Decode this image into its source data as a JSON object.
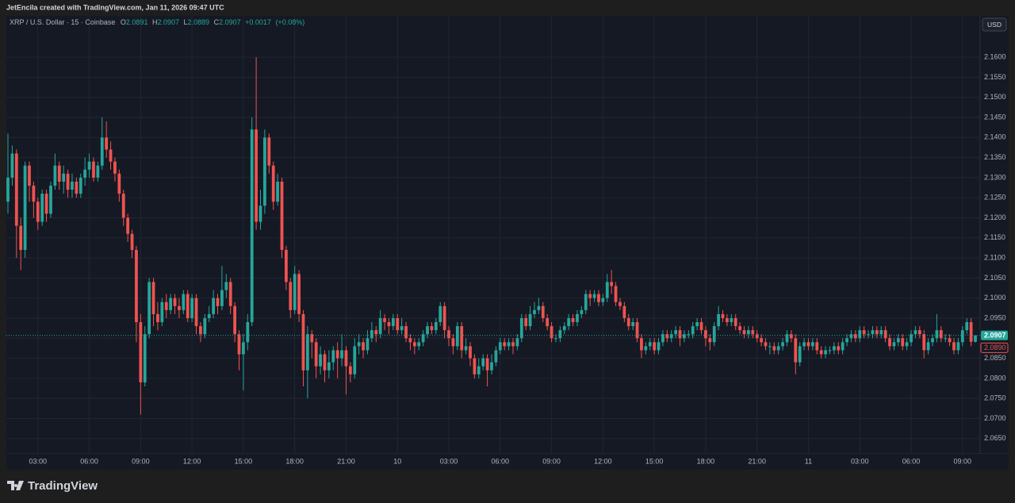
{
  "chart_data": {
    "type": "candlestick",
    "attribution": "JetEncila created with TradingView.com, Jan 11, 2026 09:47 UTC",
    "symbol": "XRP / U.S. Dollar · 15 · Coinbase",
    "ohlc_labels": [
      "O",
      "H",
      "L",
      "C"
    ],
    "change": {
      "value": 0.0017,
      "label": "+0.0017"
    },
    "change_pct": {
      "value": 0.08,
      "label": "(+0.08%)"
    },
    "currency": "USD",
    "brand": "TradingView",
    "up_color": "#26a69a",
    "down_color": "#ef5350",
    "grid": true,
    "secondary_price": {
      "value": 2.089,
      "label": "2.0890"
    },
    "ylim": [
      2.0612,
      2.1703
    ],
    "yticks": [
      {
        "value": 2.065,
        "label": "2.0650"
      },
      {
        "value": 2.07,
        "label": "2.0700"
      },
      {
        "value": 2.075,
        "label": "2.0750"
      },
      {
        "value": 2.08,
        "label": "2.0800"
      },
      {
        "value": 2.085,
        "label": "2.0850"
      },
      {
        "value": 2.09,
        "label": "2.0900"
      },
      {
        "value": 2.095,
        "label": "2.0950"
      },
      {
        "value": 2.1,
        "label": "2.1000"
      },
      {
        "value": 2.105,
        "label": "2.1050"
      },
      {
        "value": 2.11,
        "label": "2.1100"
      },
      {
        "value": 2.115,
        "label": "2.1150"
      },
      {
        "value": 2.12,
        "label": "2.1200"
      },
      {
        "value": 2.125,
        "label": "2.1250"
      },
      {
        "value": 2.13,
        "label": "2.1300"
      },
      {
        "value": 2.135,
        "label": "2.1350"
      },
      {
        "value": 2.14,
        "label": "2.1400"
      },
      {
        "value": 2.145,
        "label": "2.1450"
      },
      {
        "value": 2.15,
        "label": "2.1500"
      },
      {
        "value": 2.155,
        "label": "2.1550"
      },
      {
        "value": 2.16,
        "label": "2.1600"
      }
    ],
    "xlim": [
      0,
      226
    ],
    "xticks": [
      {
        "value": 7,
        "label": "03:00"
      },
      {
        "value": 19,
        "label": "06:00"
      },
      {
        "value": 31,
        "label": "09:00"
      },
      {
        "value": 43,
        "label": "12:00"
      },
      {
        "value": 55,
        "label": "15:00"
      },
      {
        "value": 67,
        "label": "18:00"
      },
      {
        "value": 79,
        "label": "21:00"
      },
      {
        "value": 91,
        "label": "10"
      },
      {
        "value": 103,
        "label": "03:00"
      },
      {
        "value": 115,
        "label": "06:00"
      },
      {
        "value": 127,
        "label": "09:00"
      },
      {
        "value": 139,
        "label": "12:00"
      },
      {
        "value": 151,
        "label": "15:00"
      },
      {
        "value": 163,
        "label": "18:00"
      },
      {
        "value": 175,
        "label": "21:00"
      },
      {
        "value": 187,
        "label": "11"
      },
      {
        "value": 199,
        "label": "03:00"
      },
      {
        "value": 211,
        "label": "06:00"
      },
      {
        "value": 223,
        "label": "09:00"
      }
    ],
    "open": [
      2.124,
      2.13,
      2.136,
      2.118,
      2.112,
      2.133,
      2.128,
      2.124,
      2.119,
      2.126,
      2.121,
      2.128,
      2.133,
      2.129,
      2.131,
      2.127,
      2.129,
      2.126,
      2.13,
      2.132,
      2.134,
      2.13,
      2.133,
      2.14,
      2.137,
      2.134,
      2.131,
      2.126,
      2.12,
      2.116,
      2.112,
      2.094,
      2.079,
      2.091,
      2.104,
      2.096,
      2.094,
      2.099,
      2.097,
      2.1,
      2.098,
      2.097,
      2.101,
      2.095,
      2.1,
      2.093,
      2.091,
      2.095,
      2.096,
      2.1,
      2.098,
      2.102,
      2.104,
      2.098,
      2.091,
      2.086,
      2.089,
      2.094,
      2.142,
      2.119,
      2.123,
      2.14,
      2.133,
      2.124,
      2.129,
      2.112,
      2.104,
      2.097,
      2.106,
      2.096,
      2.082,
      2.091,
      2.089,
      2.083,
      2.086,
      2.082,
      2.084,
      2.087,
      2.085,
      2.087,
      2.083,
      2.081,
      2.088,
      2.089,
      2.087,
      2.09,
      2.092,
      2.091,
      2.095,
      2.094,
      2.093,
      2.095,
      2.092,
      2.093,
      2.09,
      2.089,
      2.088,
      2.089,
      2.091,
      2.093,
      2.092,
      2.094,
      2.098,
      2.092,
      2.09,
      2.088,
      2.093,
      2.087,
      2.088,
      2.085,
      2.081,
      2.083,
      2.085,
      2.082,
      2.084,
      2.087,
      2.089,
      2.088,
      2.089,
      2.088,
      2.09,
      2.095,
      2.093,
      2.096,
      2.097,
      2.098,
      2.095,
      2.093,
      2.09,
      2.09,
      2.092,
      2.093,
      2.095,
      2.094,
      2.096,
      2.097,
      2.101,
      2.1,
      2.101,
      2.099,
      2.1,
      2.104,
      2.103,
      2.099,
      2.098,
      2.095,
      2.093,
      2.094,
      2.09,
      2.087,
      2.088,
      2.089,
      2.087,
      2.089,
      2.091,
      2.09,
      2.091,
      2.092,
      2.09,
      2.091,
      2.091,
      2.093,
      2.094,
      2.092,
      2.09,
      2.089,
      2.093,
      2.096,
      2.095,
      2.094,
      2.095,
      2.093,
      2.092,
      2.091,
      2.092,
      2.091,
      2.09,
      2.089,
      2.088,
      2.088,
      2.087,
      2.088,
      2.089,
      2.091,
      2.09,
      2.084,
      2.088,
      2.089,
      2.088,
      2.089,
      2.087,
      2.086,
      2.087,
      2.087,
      2.088,
      2.087,
      2.089,
      2.09,
      2.091,
      2.09,
      2.092,
      2.091,
      2.091,
      2.092,
      2.091,
      2.092,
      2.09,
      2.088,
      2.089,
      2.09,
      2.088,
      2.089,
      2.091,
      2.092,
      2.091,
      2.087,
      2.089,
      2.09,
      2.092,
      2.09,
      2.09,
      2.089,
      2.087,
      2.089,
      2.092,
      2.094,
      2.0891
    ],
    "high": [
      2.141,
      2.138,
      2.137,
      2.12,
      2.134,
      2.134,
      2.129,
      2.125,
      2.127,
      2.127,
      2.129,
      2.136,
      2.134,
      2.133,
      2.132,
      2.131,
      2.13,
      2.131,
      2.135,
      2.136,
      2.135,
      2.134,
      2.145,
      2.144,
      2.139,
      2.135,
      2.132,
      2.127,
      2.121,
      2.117,
      2.113,
      2.096,
      2.093,
      2.105,
      2.105,
      2.099,
      2.1,
      2.101,
      2.101,
      2.101,
      2.1,
      2.102,
      2.102,
      2.101,
      2.101,
      2.094,
      2.096,
      2.098,
      2.102,
      2.101,
      2.108,
      2.106,
      2.105,
      2.099,
      2.092,
      2.091,
      2.096,
      2.145,
      2.16,
      2.127,
      2.142,
      2.141,
      2.134,
      2.131,
      2.13,
      2.113,
      2.105,
      2.108,
      2.107,
      2.097,
      2.093,
      2.092,
      2.09,
      2.088,
      2.087,
      2.087,
      2.088,
      2.089,
      2.091,
      2.088,
      2.084,
      2.09,
      2.091,
      2.09,
      2.092,
      2.094,
      2.093,
      2.097,
      2.096,
      2.095,
      2.096,
      2.096,
      2.095,
      2.094,
      2.091,
      2.09,
      2.09,
      2.092,
      2.094,
      2.094,
      2.095,
      2.099,
      2.099,
      2.093,
      2.091,
      2.094,
      2.094,
      2.09,
      2.089,
      2.086,
      2.085,
      2.086,
      2.086,
      2.086,
      2.088,
      2.09,
      2.09,
      2.09,
      2.09,
      2.091,
      2.096,
      2.096,
      2.098,
      2.099,
      2.1,
      2.099,
      2.096,
      2.094,
      2.091,
      2.093,
      2.094,
      2.096,
      2.096,
      2.097,
      2.098,
      2.102,
      2.102,
      2.102,
      2.102,
      2.101,
      2.106,
      2.107,
      2.104,
      2.1,
      2.099,
      2.096,
      2.095,
      2.095,
      2.091,
      2.089,
      2.09,
      2.09,
      2.09,
      2.092,
      2.092,
      2.092,
      2.093,
      2.093,
      2.092,
      2.092,
      2.094,
      2.095,
      2.095,
      2.093,
      2.091,
      2.094,
      2.098,
      2.097,
      2.096,
      2.096,
      2.096,
      2.094,
      2.093,
      2.093,
      2.093,
      2.092,
      2.091,
      2.09,
      2.089,
      2.089,
      2.089,
      2.09,
      2.092,
      2.092,
      2.091,
      2.089,
      2.09,
      2.09,
      2.09,
      2.09,
      2.088,
      2.088,
      2.088,
      2.089,
      2.089,
      2.09,
      2.091,
      2.092,
      2.092,
      2.093,
      2.093,
      2.092,
      2.093,
      2.093,
      2.093,
      2.093,
      2.091,
      2.09,
      2.091,
      2.091,
      2.09,
      2.092,
      2.093,
      2.093,
      2.092,
      2.09,
      2.091,
      2.096,
      2.093,
      2.091,
      2.091,
      2.09,
      2.09,
      2.093,
      2.095,
      2.095,
      2.0907
    ],
    "low": [
      2.121,
      2.128,
      2.11,
      2.107,
      2.11,
      2.124,
      2.12,
      2.117,
      2.118,
      2.119,
      2.12,
      2.127,
      2.127,
      2.126,
      2.125,
      2.125,
      2.125,
      2.125,
      2.128,
      2.13,
      2.129,
      2.129,
      2.132,
      2.135,
      2.132,
      2.129,
      2.124,
      2.118,
      2.114,
      2.11,
      2.089,
      2.071,
      2.078,
      2.09,
      2.093,
      2.092,
      2.093,
      2.095,
      2.096,
      2.096,
      2.095,
      2.096,
      2.094,
      2.094,
      2.091,
      2.089,
      2.09,
      2.094,
      2.095,
      2.096,
      2.097,
      2.1,
      2.096,
      2.089,
      2.082,
      2.077,
      2.087,
      2.093,
      2.117,
      2.117,
      2.121,
      2.131,
      2.122,
      2.123,
      2.11,
      2.102,
      2.095,
      2.096,
      2.094,
      2.078,
      2.075,
      2.085,
      2.08,
      2.081,
      2.079,
      2.08,
      2.082,
      2.08,
      2.083,
      2.076,
      2.079,
      2.08,
      2.086,
      2.085,
      2.086,
      2.089,
      2.089,
      2.09,
      2.092,
      2.091,
      2.092,
      2.091,
      2.091,
      2.089,
      2.087,
      2.086,
      2.087,
      2.088,
      2.09,
      2.091,
      2.091,
      2.093,
      2.09,
      2.088,
      2.086,
      2.087,
      2.085,
      2.086,
      2.083,
      2.08,
      2.08,
      2.082,
      2.078,
      2.081,
      2.083,
      2.086,
      2.087,
      2.087,
      2.086,
      2.087,
      2.089,
      2.092,
      2.092,
      2.095,
      2.096,
      2.094,
      2.092,
      2.089,
      2.089,
      2.089,
      2.091,
      2.092,
      2.093,
      2.093,
      2.095,
      2.096,
      2.098,
      2.099,
      2.098,
      2.098,
      2.099,
      2.101,
      2.098,
      2.097,
      2.094,
      2.092,
      2.092,
      2.089,
      2.085,
      2.086,
      2.087,
      2.086,
      2.086,
      2.088,
      2.089,
      2.089,
      2.09,
      2.088,
      2.089,
      2.09,
      2.09,
      2.092,
      2.091,
      2.088,
      2.087,
      2.088,
      2.092,
      2.094,
      2.093,
      2.093,
      2.092,
      2.091,
      2.09,
      2.09,
      2.09,
      2.089,
      2.088,
      2.087,
      2.086,
      2.086,
      2.086,
      2.087,
      2.088,
      2.089,
      2.081,
      2.083,
      2.087,
      2.087,
      2.087,
      2.086,
      2.085,
      2.085,
      2.086,
      2.086,
      2.086,
      2.086,
      2.088,
      2.089,
      2.089,
      2.089,
      2.09,
      2.09,
      2.09,
      2.09,
      2.09,
      2.089,
      2.087,
      2.087,
      2.088,
      2.087,
      2.087,
      2.088,
      2.09,
      2.09,
      2.085,
      2.086,
      2.088,
      2.089,
      2.089,
      2.089,
      2.088,
      2.086,
      2.086,
      2.088,
      2.091,
      2.088,
      2.0889
    ],
    "close": [
      2.13,
      2.136,
      2.118,
      2.112,
      2.133,
      2.128,
      2.124,
      2.119,
      2.126,
      2.121,
      2.128,
      2.133,
      2.129,
      2.131,
      2.127,
      2.129,
      2.126,
      2.13,
      2.132,
      2.134,
      2.13,
      2.133,
      2.14,
      2.137,
      2.134,
      2.131,
      2.126,
      2.12,
      2.116,
      2.112,
      2.094,
      2.079,
      2.091,
      2.104,
      2.096,
      2.094,
      2.099,
      2.097,
      2.1,
      2.098,
      2.097,
      2.101,
      2.095,
      2.1,
      2.093,
      2.091,
      2.095,
      2.096,
      2.1,
      2.098,
      2.102,
      2.104,
      2.098,
      2.091,
      2.086,
      2.089,
      2.094,
      2.142,
      2.119,
      2.123,
      2.14,
      2.133,
      2.124,
      2.129,
      2.112,
      2.104,
      2.097,
      2.106,
      2.096,
      2.082,
      2.091,
      2.089,
      2.083,
      2.086,
      2.082,
      2.084,
      2.087,
      2.085,
      2.087,
      2.083,
      2.081,
      2.088,
      2.089,
      2.087,
      2.09,
      2.092,
      2.091,
      2.095,
      2.094,
      2.093,
      2.095,
      2.092,
      2.093,
      2.09,
      2.089,
      2.088,
      2.089,
      2.091,
      2.093,
      2.092,
      2.094,
      2.098,
      2.092,
      2.09,
      2.088,
      2.093,
      2.087,
      2.088,
      2.085,
      2.081,
      2.083,
      2.085,
      2.082,
      2.084,
      2.087,
      2.089,
      2.088,
      2.089,
      2.088,
      2.09,
      2.095,
      2.093,
      2.096,
      2.097,
      2.098,
      2.095,
      2.093,
      2.09,
      2.09,
      2.092,
      2.093,
      2.095,
      2.094,
      2.096,
      2.097,
      2.101,
      2.1,
      2.101,
      2.099,
      2.1,
      2.104,
      2.103,
      2.099,
      2.098,
      2.095,
      2.093,
      2.094,
      2.09,
      2.087,
      2.088,
      2.089,
      2.087,
      2.089,
      2.091,
      2.09,
      2.091,
      2.092,
      2.09,
      2.091,
      2.091,
      2.093,
      2.094,
      2.092,
      2.09,
      2.089,
      2.093,
      2.096,
      2.095,
      2.094,
      2.095,
      2.093,
      2.092,
      2.091,
      2.092,
      2.091,
      2.09,
      2.089,
      2.088,
      2.088,
      2.087,
      2.088,
      2.089,
      2.091,
      2.09,
      2.084,
      2.088,
      2.089,
      2.088,
      2.089,
      2.087,
      2.086,
      2.087,
      2.087,
      2.088,
      2.087,
      2.089,
      2.09,
      2.091,
      2.09,
      2.092,
      2.091,
      2.091,
      2.092,
      2.091,
      2.092,
      2.09,
      2.088,
      2.089,
      2.09,
      2.088,
      2.089,
      2.091,
      2.092,
      2.091,
      2.087,
      2.089,
      2.09,
      2.092,
      2.09,
      2.09,
      2.089,
      2.087,
      2.089,
      2.092,
      2.094,
      2.0891,
      2.0907
    ]
  }
}
